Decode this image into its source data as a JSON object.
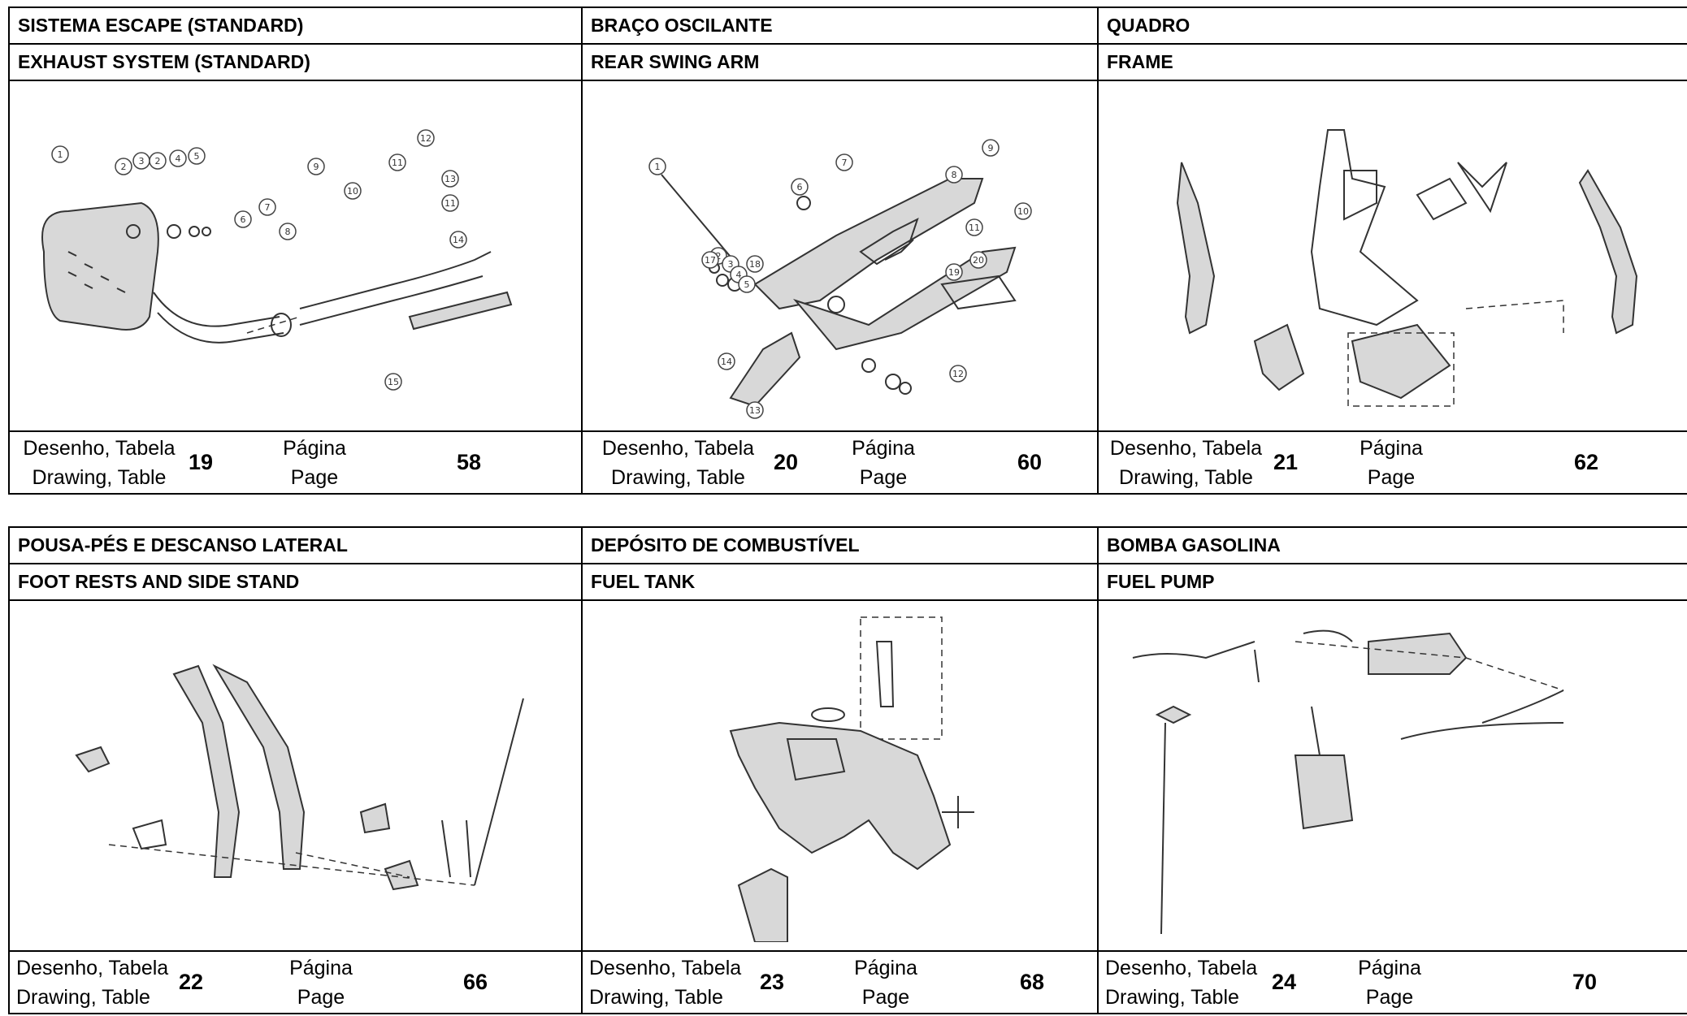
{
  "labels": {
    "drawing_pt": "Desenho, Tabela",
    "drawing_en": "Drawing, Table",
    "page_pt": "Página",
    "page_en": "Page"
  },
  "panels": [
    {
      "title_pt": "SISTEMA ESCAPE (STANDARD)",
      "title_en": "EXHAUST SYSTEM (STANDARD)",
      "drawing": "19",
      "page": "58",
      "icon": "exhaust-drawing"
    },
    {
      "title_pt": "BRAÇO OSCILANTE",
      "title_en": "REAR SWING ARM",
      "drawing": "20",
      "page": "60",
      "icon": "swing-arm-drawing"
    },
    {
      "title_pt": "QUADRO",
      "title_en": "FRAME",
      "drawing": "21",
      "page": "62",
      "icon": "frame-drawing"
    },
    {
      "title_pt": "POUSA-PÉS E DESCANSO LATERAL",
      "title_en": "FOOT RESTS AND SIDE STAND",
      "drawing": "22",
      "page": "66",
      "icon": "footrest-drawing"
    },
    {
      "title_pt": "DEPÓSITO DE COMBUSTÍVEL",
      "title_en": "FUEL TANK",
      "drawing": "23",
      "page": "68",
      "icon": "fuel-tank-drawing"
    },
    {
      "title_pt": "BOMBA GASOLINA",
      "title_en": "FUEL PUMP",
      "drawing": "24",
      "page": "70",
      "icon": "fuel-pump-drawing"
    }
  ],
  "callouts": {
    "exhaust": [
      "1",
      "2",
      "3",
      "2",
      "4",
      "5",
      "6",
      "7",
      "8",
      "9",
      "10",
      "11",
      "12",
      "13",
      "11",
      "14",
      "15"
    ],
    "swing": [
      "1",
      "2",
      "3",
      "4",
      "5",
      "6",
      "7",
      "8",
      "9",
      "10",
      "11",
      "12",
      "13",
      "14",
      "17",
      "18",
      "19",
      "20"
    ]
  }
}
